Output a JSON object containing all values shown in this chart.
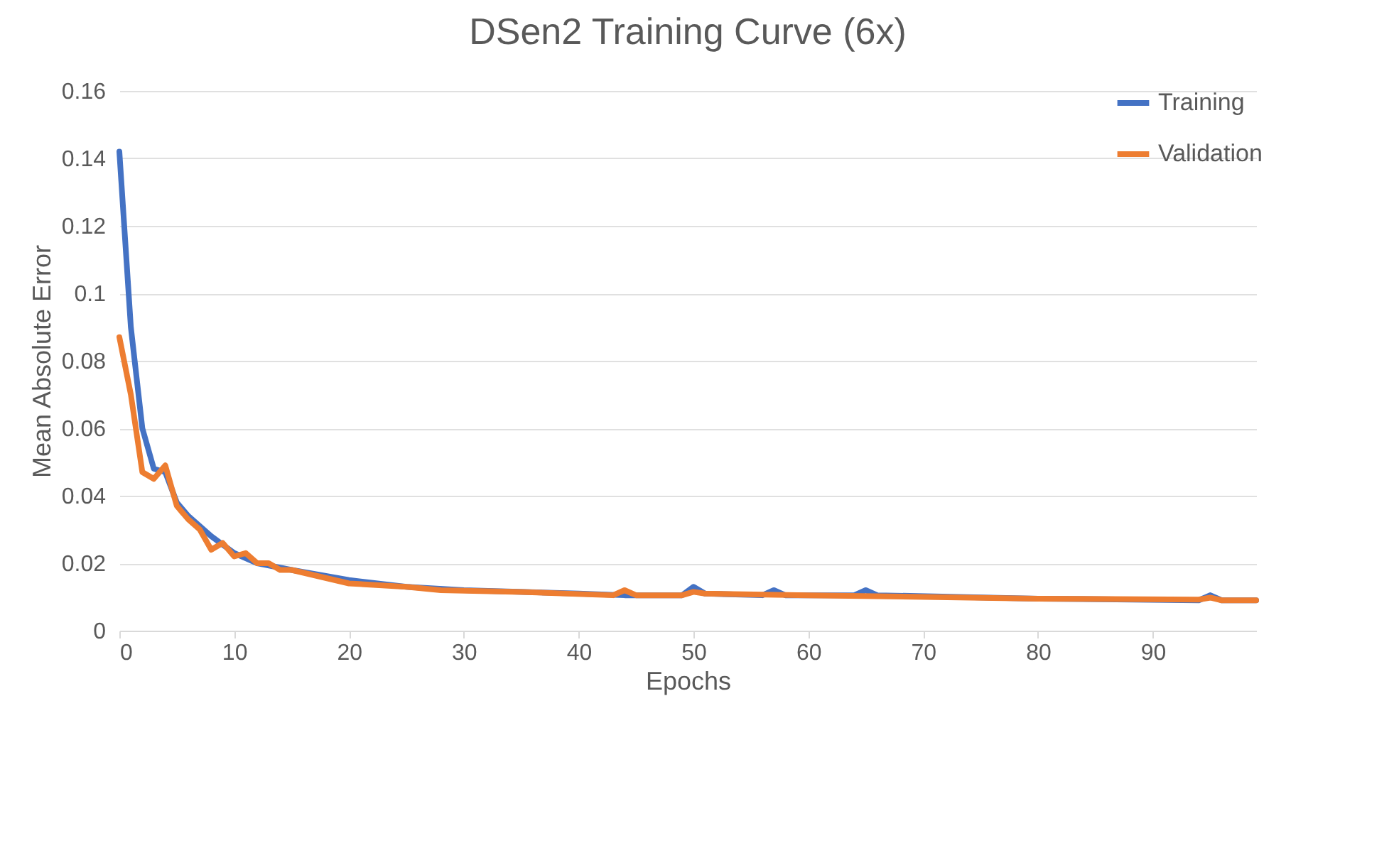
{
  "chart_data": {
    "type": "line",
    "title": "DSen2 Training Curve (6x)",
    "xlabel": "Epochs",
    "ylabel": "Mean Absolute Error",
    "xlim": [
      0,
      99
    ],
    "xticks": [
      0,
      10,
      20,
      30,
      40,
      50,
      60,
      70,
      80,
      90
    ],
    "ylim": [
      0,
      0.16
    ],
    "yticks": [
      0,
      0.02,
      0.04,
      0.06,
      0.08,
      0.1,
      0.12,
      0.14,
      0.16
    ],
    "grid": "y",
    "legend": "top right",
    "marker": "none",
    "line_style": "solid",
    "series": [
      {
        "name": "Training",
        "color": "#4472c4",
        "x": [
          0,
          1,
          2,
          3,
          4,
          5,
          6,
          8,
          10,
          12,
          15,
          20,
          25,
          30,
          40,
          44,
          45,
          49,
          50,
          51,
          56,
          57,
          58,
          64,
          65,
          66,
          80,
          94,
          95,
          96,
          99
        ],
        "values": [
          0.142,
          0.09,
          0.06,
          0.048,
          0.047,
          0.038,
          0.034,
          0.028,
          0.023,
          0.02,
          0.018,
          0.015,
          0.013,
          0.012,
          0.011,
          0.0105,
          0.0105,
          0.0105,
          0.013,
          0.011,
          0.0105,
          0.012,
          0.0105,
          0.0105,
          0.012,
          0.0105,
          0.0095,
          0.009,
          0.0105,
          0.009,
          0.009
        ]
      },
      {
        "name": "Validation",
        "color": "#ed7d31",
        "x": [
          0,
          1,
          2,
          3,
          4,
          5,
          6,
          7,
          8,
          9,
          10,
          11,
          12,
          13,
          14,
          15,
          20,
          25,
          28,
          35,
          43,
          44,
          45,
          49,
          50,
          51,
          60,
          80,
          94,
          95,
          96,
          99
        ],
        "values": [
          0.087,
          0.07,
          0.047,
          0.045,
          0.049,
          0.037,
          0.033,
          0.03,
          0.024,
          0.026,
          0.022,
          0.023,
          0.02,
          0.02,
          0.018,
          0.018,
          0.014,
          0.013,
          0.012,
          0.0115,
          0.0105,
          0.012,
          0.0105,
          0.0105,
          0.0115,
          0.011,
          0.0105,
          0.0095,
          0.0092,
          0.0098,
          0.009,
          0.009
        ]
      }
    ]
  }
}
